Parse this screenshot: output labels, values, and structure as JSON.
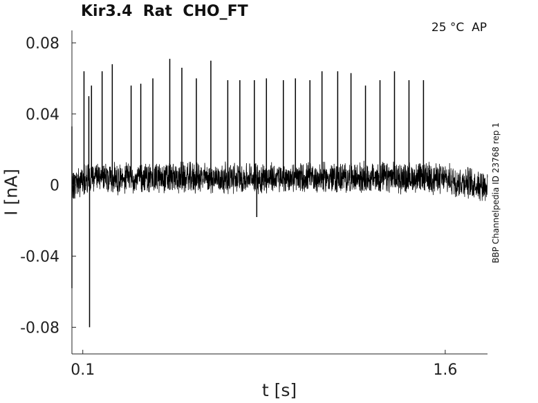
{
  "chart_data": {
    "type": "line",
    "title": "Kir3.4  Rat  CHO_FT",
    "annotation": "25 °C  AP",
    "side_label": "BBP Channelpedia ID 23768 rep 1",
    "xlabel": "t [s]",
    "ylabel": "I [nA]",
    "xlim": [
      0.055,
      1.775
    ],
    "ylim": [
      -0.095,
      0.087
    ],
    "xticks": [
      0.1,
      1.6
    ],
    "xtick_labels": [
      "0.1",
      "1.6"
    ],
    "yticks": [
      0.08,
      0.04,
      0,
      -0.04,
      -0.08
    ],
    "ytick_labels": [
      "0.08",
      "0.04",
      "0",
      "-0.04",
      "-0.08"
    ],
    "grid": false,
    "series": [
      {
        "style": "noisy trace",
        "baseline": [
          [
            0.055,
            0.0
          ],
          [
            0.12,
            0.004
          ],
          [
            1.55,
            0.004
          ],
          [
            1.775,
            0.0
          ]
        ],
        "noise_amplitude": 0.007,
        "spikes": [
          [
            0.055,
            0.033
          ],
          [
            0.055,
            -0.058
          ],
          [
            0.105,
            0.064
          ],
          [
            0.125,
            0.05
          ],
          [
            0.128,
            -0.08
          ],
          [
            0.136,
            0.056
          ],
          [
            0.18,
            0.064
          ],
          [
            0.222,
            0.068
          ],
          [
            0.3,
            0.056
          ],
          [
            0.34,
            0.057
          ],
          [
            0.39,
            0.06
          ],
          [
            0.46,
            0.071
          ],
          [
            0.51,
            0.066
          ],
          [
            0.57,
            0.06
          ],
          [
            0.63,
            0.07
          ],
          [
            0.7,
            0.059
          ],
          [
            0.75,
            0.059
          ],
          [
            0.81,
            0.059
          ],
          [
            0.86,
            0.06
          ],
          [
            0.93,
            0.059
          ],
          [
            0.98,
            0.06
          ],
          [
            1.04,
            0.059
          ],
          [
            1.09,
            0.064
          ],
          [
            1.155,
            0.064
          ],
          [
            1.21,
            0.063
          ],
          [
            1.27,
            0.056
          ],
          [
            1.33,
            0.059
          ],
          [
            1.39,
            0.064
          ],
          [
            1.45,
            0.059
          ],
          [
            1.51,
            0.059
          ],
          [
            0.82,
            -0.018
          ]
        ]
      }
    ]
  },
  "colors": {
    "trace": "#000000",
    "axis": "#222222",
    "background": "#ffffff"
  }
}
